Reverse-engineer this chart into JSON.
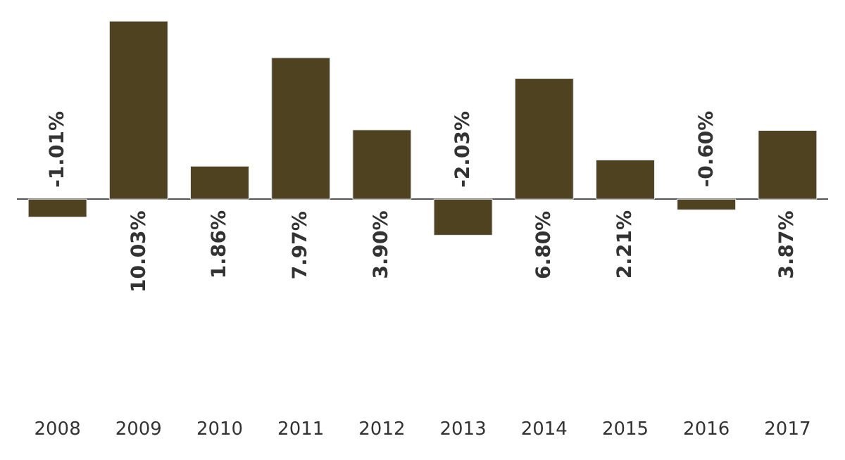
{
  "chart_data": {
    "type": "bar",
    "categories": [
      "2008",
      "2009",
      "2010",
      "2011",
      "2012",
      "2013",
      "2014",
      "2015",
      "2016",
      "2017"
    ],
    "values": [
      -1.01,
      10.03,
      1.86,
      7.97,
      3.9,
      -2.03,
      6.8,
      2.21,
      -0.6,
      3.87
    ],
    "value_labels": [
      "-1.01%",
      "10.03%",
      "1.86%",
      "7.97%",
      "3.90%",
      "-2.03%",
      "6.80%",
      "2.21%",
      "-0.60%",
      "3.87%"
    ],
    "color": "#4f4220"
  }
}
